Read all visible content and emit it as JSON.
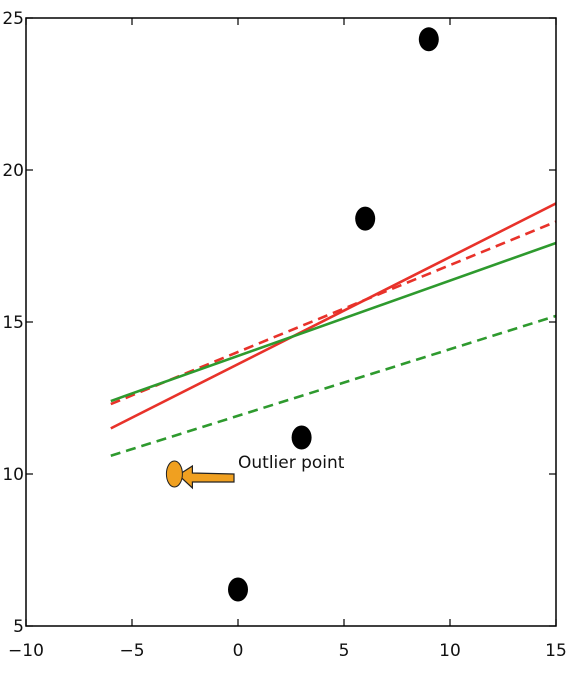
{
  "chart_data": {
    "type": "scatter",
    "title": "",
    "xlabel": "",
    "ylabel": "",
    "xlim": [
      -10,
      15
    ],
    "ylim": [
      5,
      25
    ],
    "grid": false,
    "x_ticks": [
      -10,
      -5,
      0,
      5,
      10,
      15
    ],
    "y_ticks": [
      5,
      10,
      15,
      20,
      25
    ],
    "x_tick_labels": [
      "−10",
      "−5",
      "0",
      "5",
      "10",
      "15"
    ],
    "y_tick_labels": [
      "5",
      "10",
      "15",
      "20",
      "25"
    ],
    "points": [
      {
        "x": 0,
        "y": 6.2,
        "color": "#000000"
      },
      {
        "x": 3,
        "y": 11.2,
        "color": "#000000"
      },
      {
        "x": 6,
        "y": 18.4,
        "color": "#000000"
      },
      {
        "x": 9,
        "y": 24.3,
        "color": "#000000"
      },
      {
        "x": -3,
        "y": 10.0,
        "color": "#f0a020"
      }
    ],
    "lines": [
      {
        "color": "#e8322a",
        "style": "solid",
        "x": [
          -6,
          15
        ],
        "y": [
          11.5,
          18.9
        ]
      },
      {
        "color": "#e8322a",
        "style": "dashed",
        "x": [
          -6,
          15
        ],
        "y": [
          12.3,
          18.3
        ]
      },
      {
        "color": "#2e9a2e",
        "style": "solid",
        "x": [
          -6,
          15
        ],
        "y": [
          12.4,
          17.6
        ]
      },
      {
        "color": "#2e9a2e",
        "style": "dashed",
        "x": [
          -6,
          15
        ],
        "y": [
          10.6,
          15.2
        ]
      }
    ],
    "annotation": {
      "text": "Outlier point",
      "target_x": -3,
      "target_y": 10.0,
      "text_x": 0,
      "text_y": 10.4,
      "arrow_color": "#f0a020"
    }
  }
}
